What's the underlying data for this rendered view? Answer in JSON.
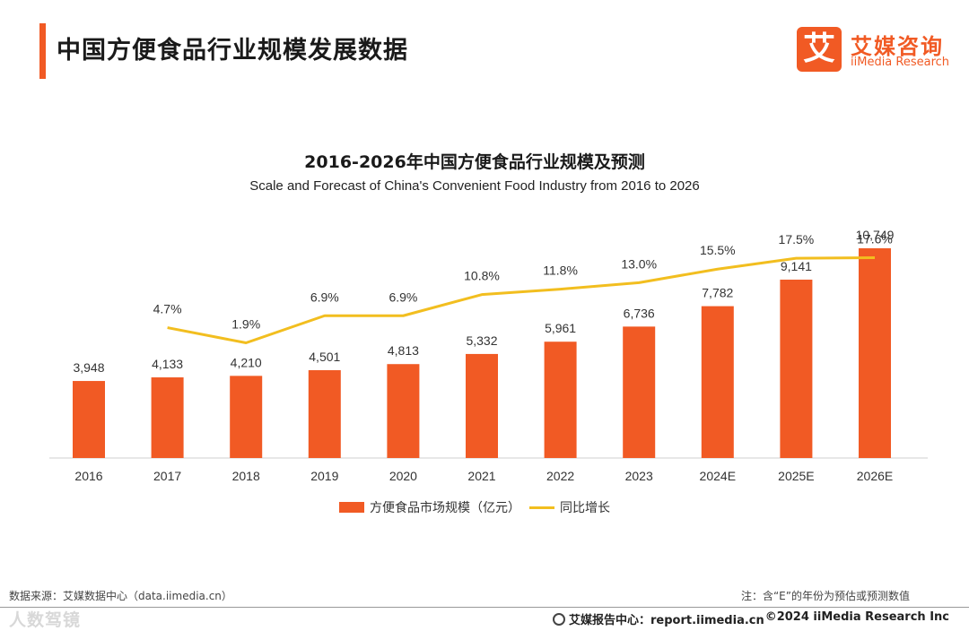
{
  "header": {
    "title": "中国方便食品行业规模发展数据"
  },
  "logo": {
    "mark": "艾",
    "cn": "艾媒咨询",
    "en": "iiMedia Research"
  },
  "chart_data": {
    "type": "bar",
    "title": "2016-2026年中国方便食品行业规模及预测",
    "subtitle": "Scale and Forecast of China's Convenient Food Industry from 2016 to 2026",
    "categories": [
      "2016",
      "2017",
      "2018",
      "2019",
      "2020",
      "2021",
      "2022",
      "2023",
      "2024E",
      "2025E",
      "2026E"
    ],
    "series": [
      {
        "name": "方便食品市场规模（亿元）",
        "type": "bar",
        "color": "#f15a24",
        "values": [
          3948,
          4133,
          4210,
          4501,
          4813,
          5332,
          5961,
          6736,
          7782,
          9141,
          10749
        ],
        "labels": [
          "3,948",
          "4,133",
          "4,210",
          "4,501",
          "4,813",
          "5,332",
          "5,961",
          "6,736",
          "7,782",
          "9,141",
          "10,749"
        ]
      },
      {
        "name": "同比增长",
        "type": "line",
        "color": "#f2be1f",
        "values": [
          null,
          4.7,
          1.9,
          6.9,
          6.9,
          10.8,
          11.8,
          13.0,
          15.5,
          17.5,
          17.6
        ],
        "labels": [
          "",
          "4.7%",
          "1.9%",
          "6.9%",
          "6.9%",
          "10.8%",
          "11.8%",
          "13.0%",
          "15.5%",
          "17.5%",
          "17.6%"
        ]
      }
    ],
    "legend_position": "bottom",
    "grid": false
  },
  "footer": {
    "source": "数据来源：艾媒数据中心（data.iimedia.cn）",
    "note": "注：含“E”的年份为预估或预测数值",
    "watermark": "人数驾镜",
    "report": "艾媒报告中心：report.iimedia.cn",
    "copyright": "©2024  iiMedia Research Inc"
  }
}
